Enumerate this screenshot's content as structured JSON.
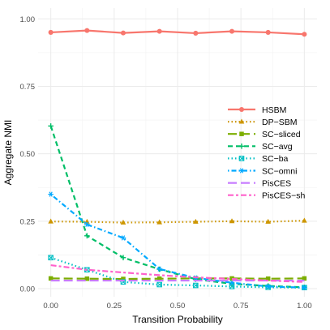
{
  "chart_data": {
    "type": "line",
    "title": "",
    "xlabel": "Transition Probability",
    "ylabel": "Aggregate NMI",
    "xlim": [
      -0.05,
      1.05
    ],
    "ylim": [
      -0.03,
      1.04
    ],
    "xticks": [
      0.0,
      0.25,
      0.5,
      0.75,
      1.0
    ],
    "xtick_labels": [
      "0.00",
      "0.25",
      "0.50",
      "0.75",
      "1.00"
    ],
    "yticks": [
      0.0,
      0.25,
      0.5,
      0.75,
      1.0
    ],
    "ytick_labels": [
      "0.00",
      "0.25",
      "0.50",
      "0.75",
      "1.00"
    ],
    "grid": true,
    "legend_position": "right",
    "x": [
      0.0,
      0.1429,
      0.2857,
      0.4286,
      0.5714,
      0.7143,
      0.8571,
      1.0
    ],
    "series": [
      {
        "name": "HSBM",
        "color": "#F8766D",
        "dash": "solid",
        "marker": "circle",
        "values": [
          0.95,
          0.957,
          0.948,
          0.954,
          0.947,
          0.954,
          0.95,
          0.943
        ]
      },
      {
        "name": "DP−SBM",
        "color": "#CD9600",
        "dash": "dotted",
        "marker": "triangle",
        "values": [
          0.249,
          0.248,
          0.245,
          0.246,
          0.248,
          0.25,
          0.248,
          0.252
        ]
      },
      {
        "name": "SC−sliced",
        "color": "#7CAE00",
        "dash": "longdash",
        "marker": "square",
        "values": [
          0.038,
          0.037,
          0.036,
          0.037,
          0.038,
          0.038,
          0.037,
          0.038
        ]
      },
      {
        "name": "SC−avg",
        "color": "#00BE67",
        "dash": "dashed",
        "marker": "plus",
        "values": [
          0.603,
          0.196,
          0.115,
          0.072,
          0.035,
          0.018,
          0.01,
          0.005
        ]
      },
      {
        "name": "SC−ba",
        "color": "#00BFC4",
        "dash": "dotted",
        "marker": "squarex",
        "values": [
          0.115,
          0.07,
          0.025,
          0.015,
          0.012,
          0.008,
          0.005,
          0.004
        ]
      },
      {
        "name": "SC−omni",
        "color": "#00A9FF",
        "dash": "dotdash",
        "marker": "star",
        "values": [
          0.35,
          0.238,
          0.188,
          0.073,
          0.04,
          0.022,
          0.008,
          0.004
        ]
      },
      {
        "name": "PisCES",
        "color": "#C77CFF",
        "dash": "longdash",
        "marker": "none",
        "values": [
          0.03,
          0.03,
          0.03,
          0.03,
          0.03,
          0.03,
          0.03,
          0.03
        ]
      },
      {
        "name": "PisCES−sh",
        "color": "#FF61CC",
        "dash": "twodash",
        "marker": "none",
        "values": [
          0.087,
          0.07,
          0.06,
          0.05,
          0.042,
          0.036,
          0.03,
          0.025
        ]
      }
    ]
  }
}
